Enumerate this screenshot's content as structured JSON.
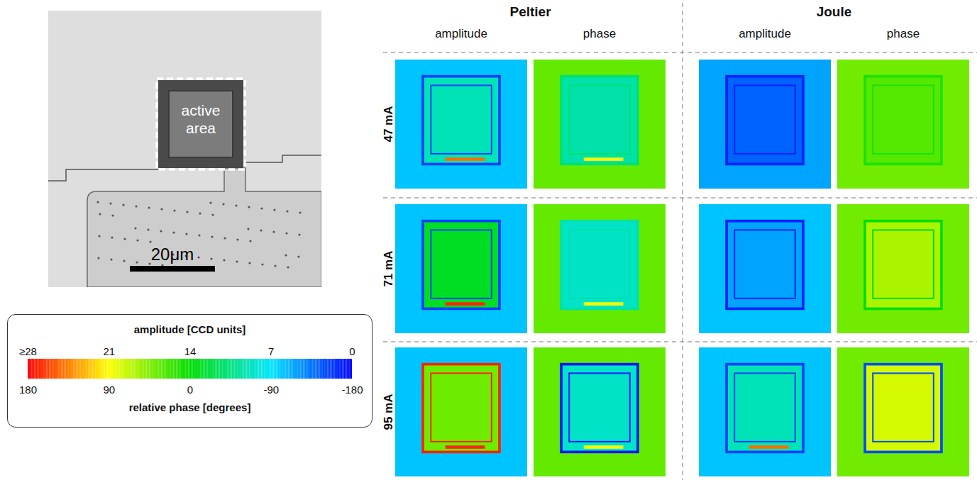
{
  "chart_data": {
    "type": "heatmap",
    "micrograph": {
      "label": "active area",
      "scale_bar": "20μm"
    },
    "colorbar": {
      "title": "amplitude [CCD units]",
      "amplitude_range": [
        0,
        28
      ],
      "amplitude_ticks": [
        {
          "value": 28,
          "label": "≥28"
        },
        21,
        14,
        7,
        0
      ],
      "phase_title": "relative phase [degrees]",
      "phase_range": [
        -180,
        180
      ],
      "phase_ticks": [
        180,
        90,
        0,
        -90,
        -180
      ],
      "colors": [
        "#ff0000",
        "#ffff00",
        "#00dd00",
        "#00e5ff",
        "#0000ff"
      ]
    },
    "column_groups": [
      "Peltier",
      "Joule"
    ],
    "columns": [
      "amplitude",
      "phase"
    ],
    "rows": [
      "47 mA",
      "71 mA",
      "95 mA"
    ],
    "panels": [
      {
        "group": "Peltier",
        "quantity": "amplitude",
        "current": "47 mA",
        "background": 6,
        "border": 2,
        "interior": 9,
        "stripe": 25
      },
      {
        "group": "Peltier",
        "quantity": "phase",
        "current": "47 mA",
        "background": 35,
        "border": -40,
        "interior": -60,
        "stripe": 90
      },
      {
        "group": "Joule",
        "quantity": "amplitude",
        "current": "47 mA",
        "background": 5,
        "border": 1,
        "interior": 3,
        "stripe": null
      },
      {
        "group": "Joule",
        "quantity": "phase",
        "current": "47 mA",
        "background": 40,
        "border": 10,
        "interior": 30,
        "stripe": null
      },
      {
        "group": "Peltier",
        "quantity": "amplitude",
        "current": "71 mA",
        "background": 6,
        "border": 2,
        "interior": 13,
        "stripe": 27
      },
      {
        "group": "Peltier",
        "quantity": "phase",
        "current": "71 mA",
        "background": 35,
        "border": -60,
        "interior": -70,
        "stripe": 90
      },
      {
        "group": "Joule",
        "quantity": "amplitude",
        "current": "71 mA",
        "background": 6,
        "border": 1,
        "interior": 5,
        "stripe": null
      },
      {
        "group": "Joule",
        "quantity": "phase",
        "current": "71 mA",
        "background": 40,
        "border": 0,
        "interior": 60,
        "stripe": null
      },
      {
        "group": "Peltier",
        "quantity": "amplitude",
        "current": "95 mA",
        "background": 6,
        "border": 27,
        "interior": 17,
        "stripe": 27
      },
      {
        "group": "Peltier",
        "quantity": "phase",
        "current": "95 mA",
        "background": 35,
        "border": -170,
        "interior": -70,
        "stripe": 90
      },
      {
        "group": "Joule",
        "quantity": "amplitude",
        "current": "95 mA",
        "background": 6,
        "border": 2,
        "interior": 9,
        "stripe": 25
      },
      {
        "group": "Joule",
        "quantity": "phase",
        "current": "95 mA",
        "background": 40,
        "border": -150,
        "interior": 75,
        "stripe": null
      }
    ]
  }
}
